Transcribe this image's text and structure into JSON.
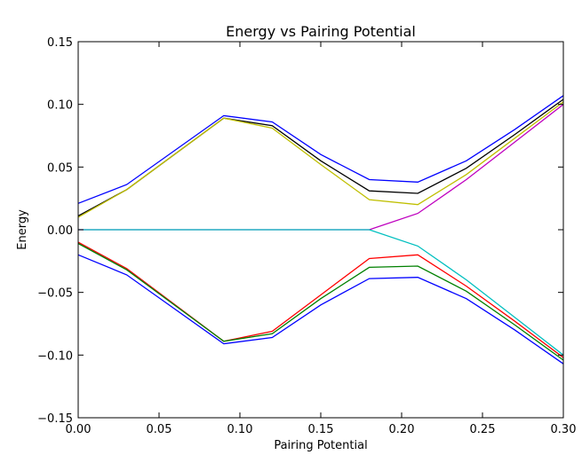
{
  "chart_data": {
    "type": "line",
    "title": "Energy vs Pairing Potential",
    "xlabel": "Pairing Potential",
    "ylabel": "Energy",
    "xlim": [
      0.0,
      0.3
    ],
    "ylim": [
      -0.15,
      0.15
    ],
    "xticks": [
      "0.00",
      "0.05",
      "0.10",
      "0.15",
      "0.20",
      "0.25",
      "0.30"
    ],
    "yticks": [
      "−0.15",
      "−0.10",
      "−0.05",
      "0.00",
      "0.05",
      "0.10",
      "0.15"
    ],
    "grid": false,
    "legend": "none",
    "x": [
      0.0,
      0.03,
      0.09,
      0.12,
      0.15,
      0.18,
      0.21,
      0.24,
      0.27,
      0.3
    ],
    "series": [
      {
        "color": "#0000ff",
        "values": [
          0.021,
          0.036,
          0.091,
          0.086,
          0.06,
          0.04,
          0.038,
          0.055,
          0.08,
          0.107
        ]
      },
      {
        "color": "#000000",
        "values": [
          0.011,
          0.032,
          0.089,
          0.083,
          0.055,
          0.031,
          0.029,
          0.049,
          0.076,
          0.104
        ]
      },
      {
        "color": "#bfbf00",
        "values": [
          0.01,
          0.032,
          0.089,
          0.081,
          0.052,
          0.024,
          0.02,
          0.044,
          0.073,
          0.102
        ]
      },
      {
        "color": "#bf00bf",
        "values": [
          0.0,
          0.0,
          0.0,
          0.0,
          0.0,
          0.0,
          0.013,
          0.04,
          0.07,
          0.1
        ]
      },
      {
        "color": "#00bfbf",
        "values": [
          0.0,
          0.0,
          0.0,
          0.0,
          0.0,
          0.0,
          -0.013,
          -0.04,
          -0.07,
          -0.1
        ]
      },
      {
        "color": "#ff0000",
        "values": [
          -0.01,
          -0.031,
          -0.089,
          -0.081,
          -0.052,
          -0.023,
          -0.02,
          -0.045,
          -0.073,
          -0.102
        ]
      },
      {
        "color": "#008000",
        "values": [
          -0.011,
          -0.032,
          -0.089,
          -0.083,
          -0.055,
          -0.03,
          -0.029,
          -0.049,
          -0.076,
          -0.104
        ]
      },
      {
        "color": "#0000ff",
        "values": [
          -0.02,
          -0.036,
          -0.091,
          -0.086,
          -0.06,
          -0.039,
          -0.038,
          -0.055,
          -0.08,
          -0.107
        ]
      }
    ]
  }
}
